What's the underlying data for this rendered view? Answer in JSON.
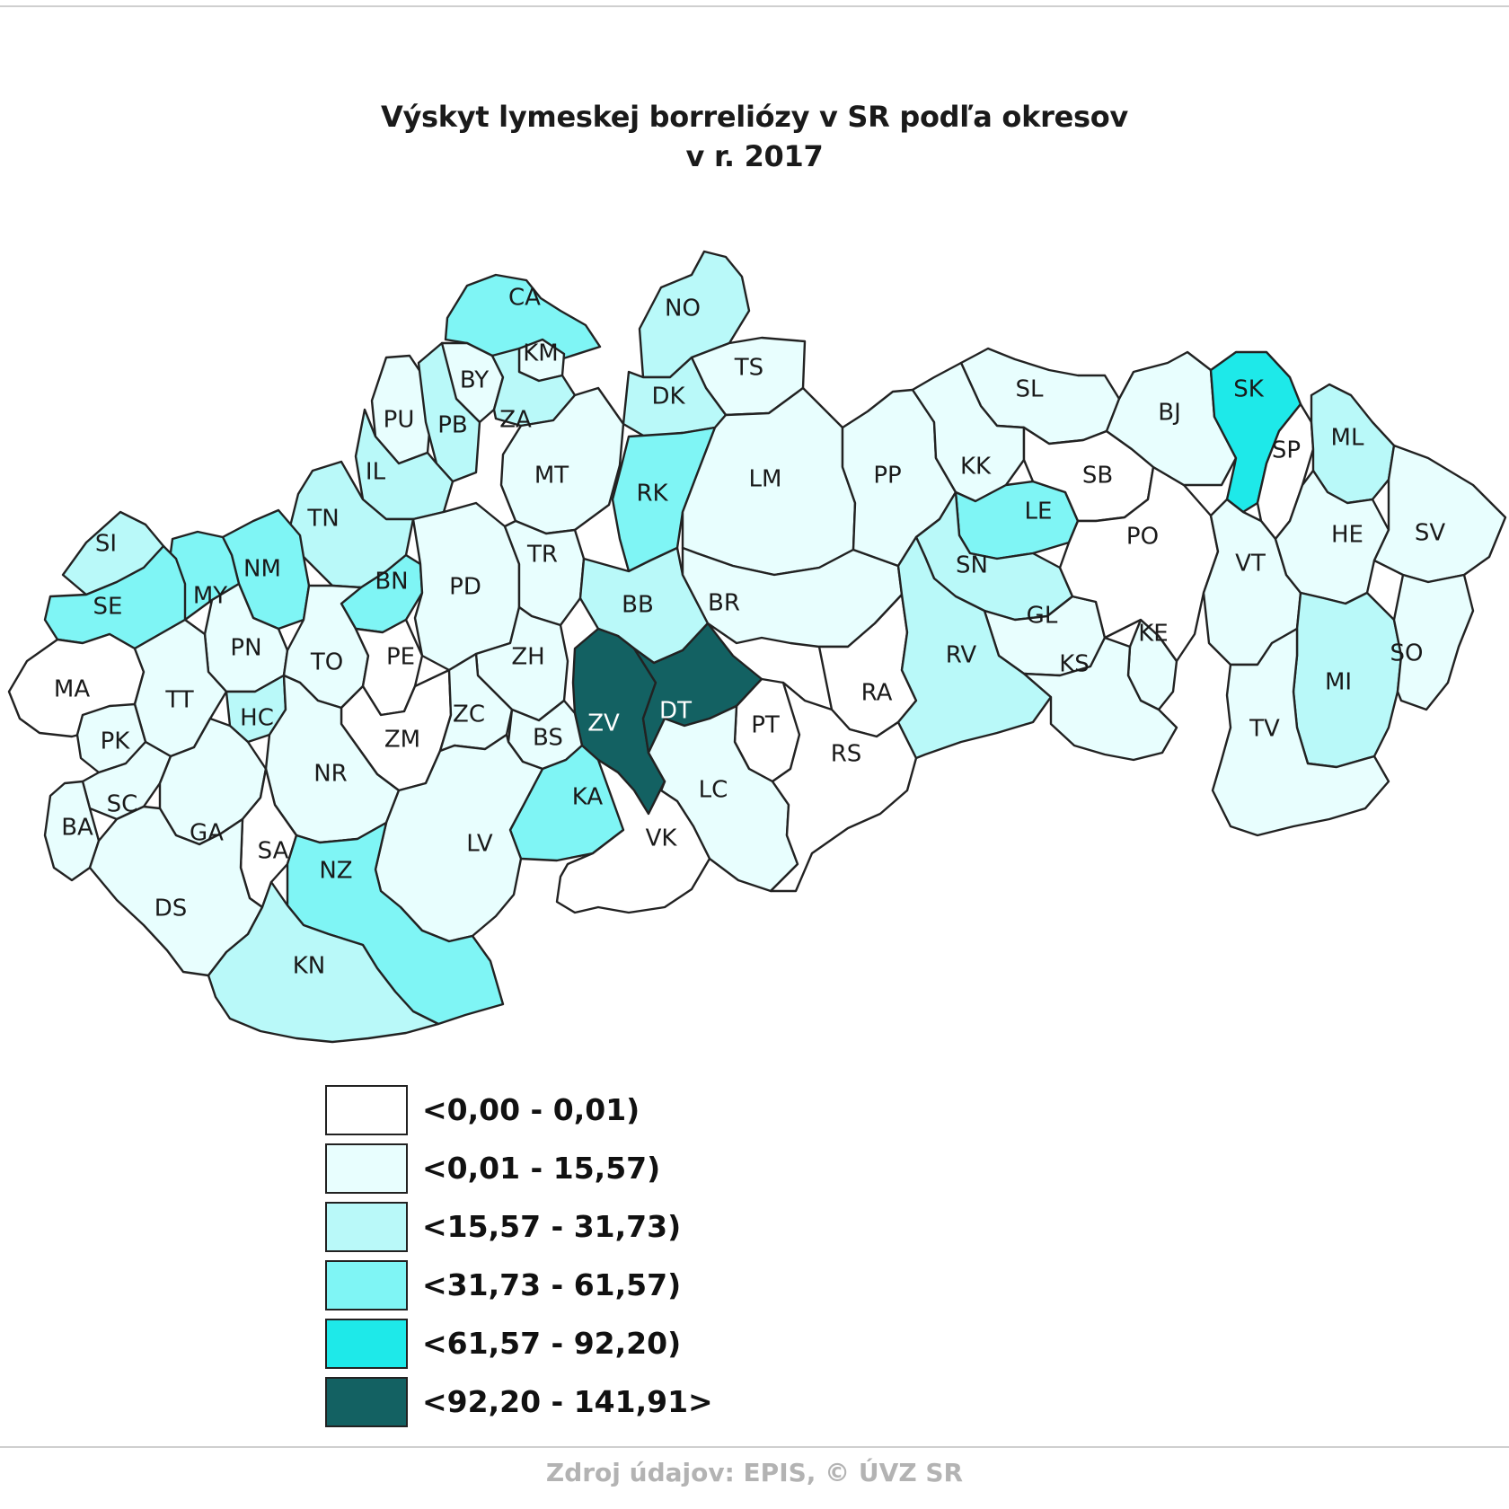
{
  "title": {
    "line1": "Výskyt lymeskej borreliózy v SR podľa okresov",
    "line2": "v r. 2017"
  },
  "legend": [
    {
      "label": "<0,00 - 0,01)",
      "color": "#ffffff"
    },
    {
      "label": "<0,01 - 15,57)",
      "color": "#e8fefe"
    },
    {
      "label": "<15,57 - 31,73)",
      "color": "#b9f9f9"
    },
    {
      "label": "<31,73 - 61,57)",
      "color": "#7ff5f5"
    },
    {
      "label": "<61,57 - 92,20)",
      "color": "#1ee9e9"
    },
    {
      "label": "<92,20 - 141,91>",
      "color": "#136162"
    }
  ],
  "districts": [
    {
      "code": "CA",
      "class": 3
    },
    {
      "code": "NO",
      "class": 2
    },
    {
      "code": "KM",
      "class": 1
    },
    {
      "code": "TS",
      "class": 1
    },
    {
      "code": "BY",
      "class": 1
    },
    {
      "code": "PU",
      "class": 1
    },
    {
      "code": "PB",
      "class": 2
    },
    {
      "code": "ZA",
      "class": 2
    },
    {
      "code": "DK",
      "class": 2
    },
    {
      "code": "IL",
      "class": 2
    },
    {
      "code": "MT",
      "class": 1
    },
    {
      "code": "RK",
      "class": 3
    },
    {
      "code": "LM",
      "class": 1
    },
    {
      "code": "TN",
      "class": 2
    },
    {
      "code": "SI",
      "class": 2
    },
    {
      "code": "NM",
      "class": 3
    },
    {
      "code": "MY",
      "class": 3
    },
    {
      "code": "BN",
      "class": 3
    },
    {
      "code": "PD",
      "class": 1
    },
    {
      "code": "TR",
      "class": 1
    },
    {
      "code": "SE",
      "class": 3
    },
    {
      "code": "BB",
      "class": 2
    },
    {
      "code": "BR",
      "class": 1
    },
    {
      "code": "PN",
      "class": 1
    },
    {
      "code": "TO",
      "class": 1
    },
    {
      "code": "PE",
      "class": 0
    },
    {
      "code": "ZH",
      "class": 1
    },
    {
      "code": "MA",
      "class": 0
    },
    {
      "code": "TT",
      "class": 1
    },
    {
      "code": "HC",
      "class": 2
    },
    {
      "code": "ZM",
      "class": 0
    },
    {
      "code": "ZC",
      "class": 1
    },
    {
      "code": "ZV",
      "class": 5
    },
    {
      "code": "DT",
      "class": 5
    },
    {
      "code": "PT",
      "class": 0
    },
    {
      "code": "PK",
      "class": 1
    },
    {
      "code": "NR",
      "class": 1
    },
    {
      "code": "BS",
      "class": 1
    },
    {
      "code": "KA",
      "class": 3
    },
    {
      "code": "LC",
      "class": 1
    },
    {
      "code": "SC",
      "class": 1
    },
    {
      "code": "BA",
      "class": 1
    },
    {
      "code": "GA",
      "class": 1
    },
    {
      "code": "SA",
      "class": 0
    },
    {
      "code": "VK",
      "class": 0
    },
    {
      "code": "LV",
      "class": 1
    },
    {
      "code": "NZ",
      "class": 3
    },
    {
      "code": "DS",
      "class": 1
    },
    {
      "code": "KN",
      "class": 2
    },
    {
      "code": "RA",
      "class": 0
    },
    {
      "code": "RS",
      "class": 0
    },
    {
      "code": "PP",
      "class": 1
    },
    {
      "code": "SL",
      "class": 1
    },
    {
      "code": "KK",
      "class": 1
    },
    {
      "code": "LE",
      "class": 3
    },
    {
      "code": "SB",
      "class": 0
    },
    {
      "code": "SN",
      "class": 2
    },
    {
      "code": "GL",
      "class": 1
    },
    {
      "code": "RV",
      "class": 2
    },
    {
      "code": "KE",
      "class": 1
    },
    {
      "code": "KS",
      "class": 1
    },
    {
      "code": "PO",
      "class": 0
    },
    {
      "code": "BJ",
      "class": 1
    },
    {
      "code": "SK",
      "class": 4
    },
    {
      "code": "SP",
      "class": 0
    },
    {
      "code": "ML",
      "class": 2
    },
    {
      "code": "VT",
      "class": 1
    },
    {
      "code": "HE",
      "class": 1
    },
    {
      "code": "SV",
      "class": 1
    },
    {
      "code": "MI",
      "class": 2
    },
    {
      "code": "SO",
      "class": 1
    },
    {
      "code": "TV",
      "class": 1
    }
  ],
  "source": "Zdroj údajov: EPIS, © ÚVZ SR"
}
